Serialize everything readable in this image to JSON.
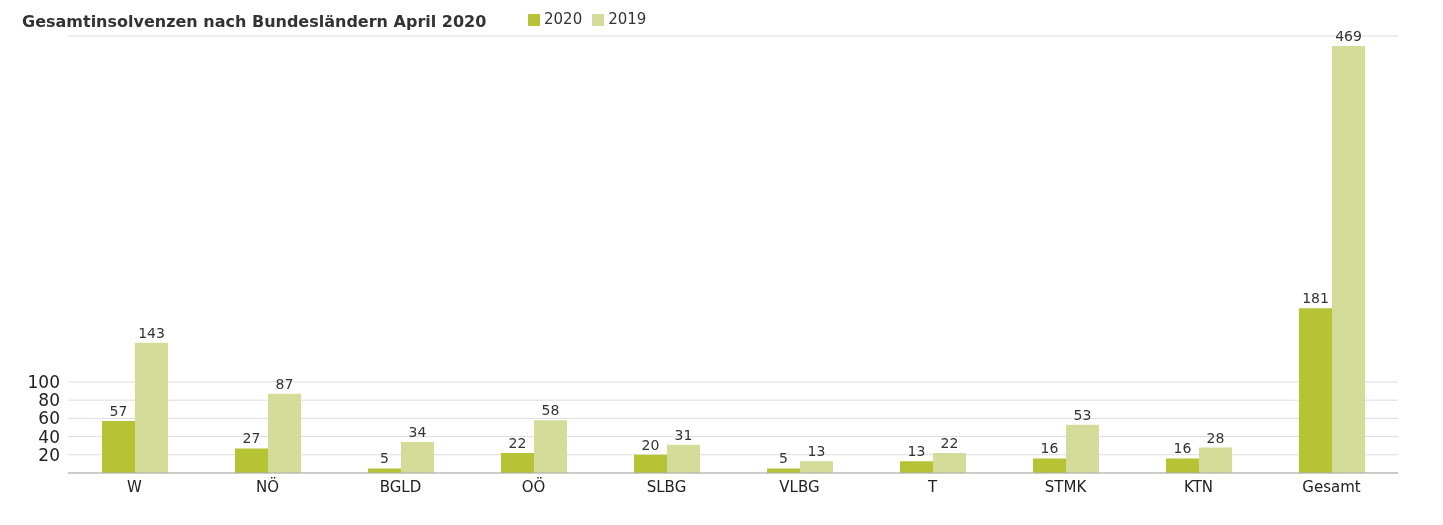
{
  "chart_data": {
    "type": "bar",
    "title": "Gesamtinsolvenzen nach Bundesländern April 2020",
    "categories": [
      "W",
      "NÖ",
      "BGLD",
      "OÖ",
      "SLBG",
      "VLBG",
      "T",
      "STMK",
      "KTN",
      "Gesamt"
    ],
    "series": [
      {
        "name": "2020",
        "color": "#b5c334",
        "values": [
          57,
          27,
          5,
          22,
          20,
          5,
          13,
          16,
          16,
          181
        ]
      },
      {
        "name": "2019",
        "color": "#d5dc9a",
        "values": [
          143,
          87,
          34,
          58,
          31,
          13,
          22,
          53,
          28,
          469
        ]
      }
    ],
    "ylim": [
      0,
      480
    ],
    "yticks": [
      20,
      40,
      60,
      80,
      100
    ],
    "grid": "y",
    "data_labels": true,
    "legend": "top left"
  }
}
